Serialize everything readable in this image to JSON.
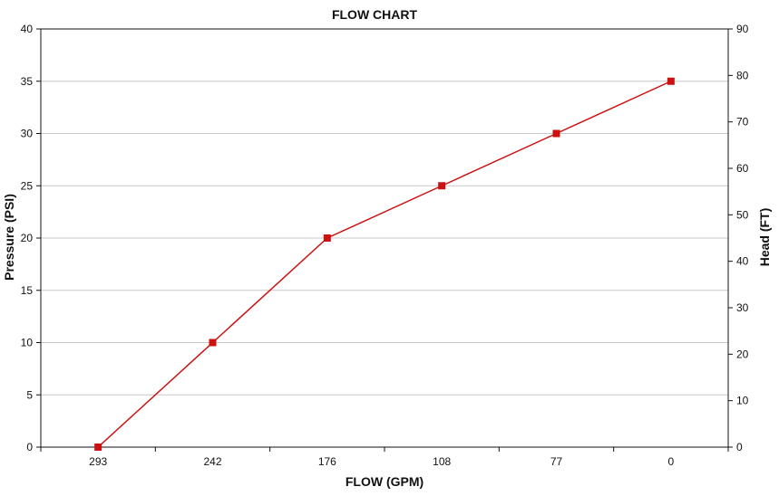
{
  "chart_data": {
    "type": "line",
    "title": "FLOW CHART",
    "xlabel": "FLOW (GPM)",
    "ylabel": "Pressure (PSI)",
    "y2label": "Head (FT)",
    "categories": [
      "293",
      "242",
      "176",
      "108",
      "77",
      "0"
    ],
    "series": [
      {
        "values": [
          0,
          10,
          20,
          25,
          30,
          35
        ]
      }
    ],
    "ylim": [
      0,
      40
    ],
    "yticks": [
      "0",
      "5",
      "10",
      "15",
      "20",
      "25",
      "30",
      "35",
      "40"
    ],
    "y2lim": [
      0,
      90
    ],
    "y2ticks": [
      "0",
      "10",
      "20",
      "30",
      "40",
      "50",
      "60",
      "70",
      "80",
      "90"
    ],
    "grid": true,
    "legend": "none",
    "colors": {
      "series": "#cc1111",
      "grid": "#c8c8c8",
      "axis": "#111111"
    }
  }
}
